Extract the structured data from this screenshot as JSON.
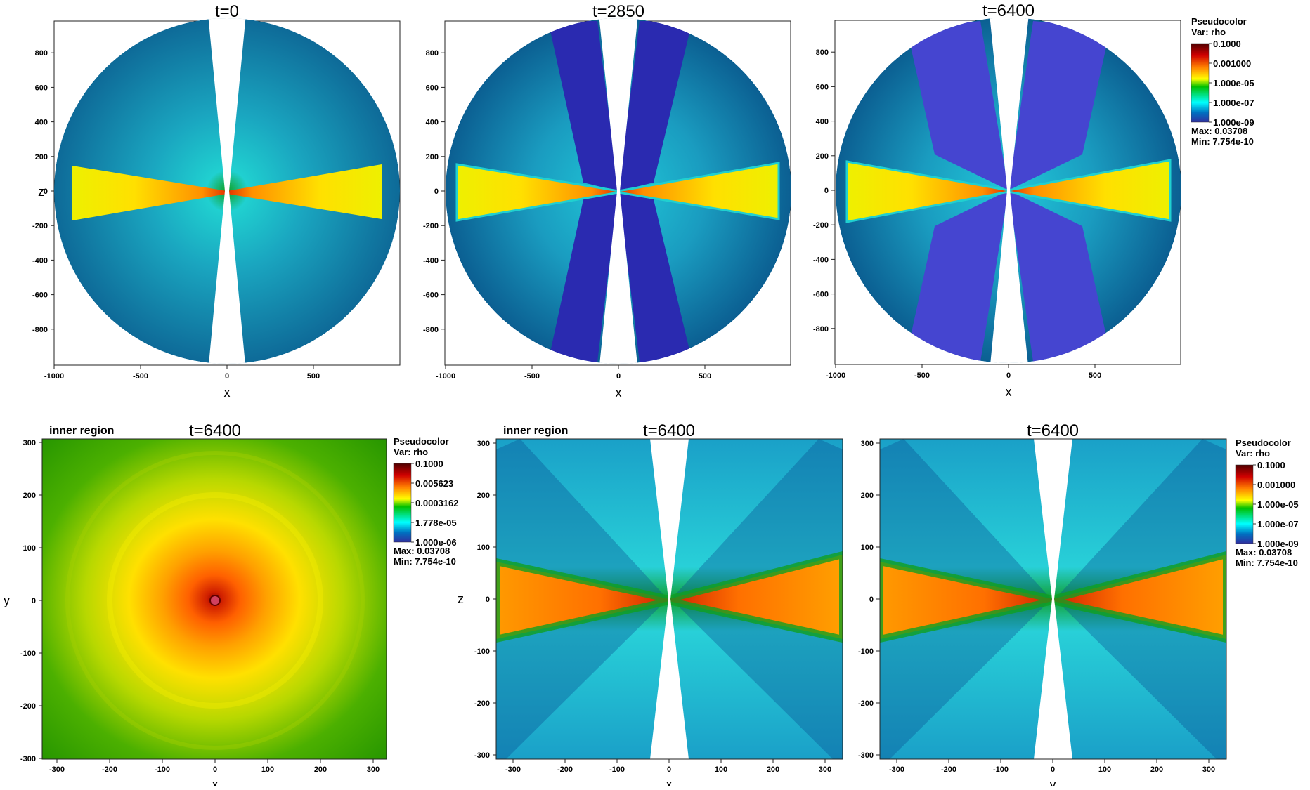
{
  "figure": {
    "top_row": {
      "panels": [
        {
          "title": "t=0",
          "xlabel": "x",
          "ylabel": "z"
        },
        {
          "title": "t=2850",
          "xlabel": "x",
          "ylabel": ""
        },
        {
          "title": "t=6400",
          "xlabel": "x",
          "ylabel": ""
        }
      ],
      "x_ticks": [
        "-1000",
        "-500",
        "0",
        "500"
      ],
      "y_ticks": [
        "800",
        "600",
        "400",
        "200",
        "0",
        "-200",
        "-400",
        "-600",
        "-800"
      ]
    },
    "bottom_row": {
      "panels": [
        {
          "tag": "inner region",
          "title": "t=6400",
          "xlabel": "x",
          "ylabel": "y"
        },
        {
          "tag": "inner region",
          "title": "t=6400",
          "xlabel": "x",
          "ylabel": "z"
        },
        {
          "tag": "",
          "title": "t=6400",
          "xlabel": "y",
          "ylabel": ""
        }
      ],
      "x_ticks": [
        "-300",
        "-200",
        "-100",
        "0",
        "100",
        "200",
        "300"
      ],
      "y_ticks": [
        "300",
        "200",
        "100",
        "0",
        "-100",
        "-200",
        "-300"
      ]
    },
    "legends": [
      {
        "plot": "Pseudocolor",
        "var": "Var: rho",
        "labels": [
          "0.1000",
          "0.001000",
          "1.000e-05",
          "1.000e-07",
          "1.000e-09"
        ],
        "max": "Max:  0.03708",
        "min": "Min:  7.754e-10"
      },
      {
        "plot": "Pseudocolor",
        "var": "Var: rho",
        "labels": [
          "0.1000",
          "0.005623",
          "0.0003162",
          "1.778e-05",
          "1.000e-06"
        ],
        "max": "Max:  0.03708",
        "min": "Min:  7.754e-10"
      },
      {
        "plot": "Pseudocolor",
        "var": "Var: rho",
        "labels": [
          "0.1000",
          "0.001000",
          "1.000e-05",
          "1.000e-07",
          "1.000e-09"
        ],
        "max": "Max:  0.03708",
        "min": "Min:  7.754e-10"
      }
    ],
    "colormap": [
      "#ffffff",
      "#300000",
      "#b00000",
      "#ff4000",
      "#ffa000",
      "#ffff00",
      "#00c000",
      "#00ffff",
      "#0060a0",
      "#0000a0",
      "#6060ff"
    ]
  }
}
